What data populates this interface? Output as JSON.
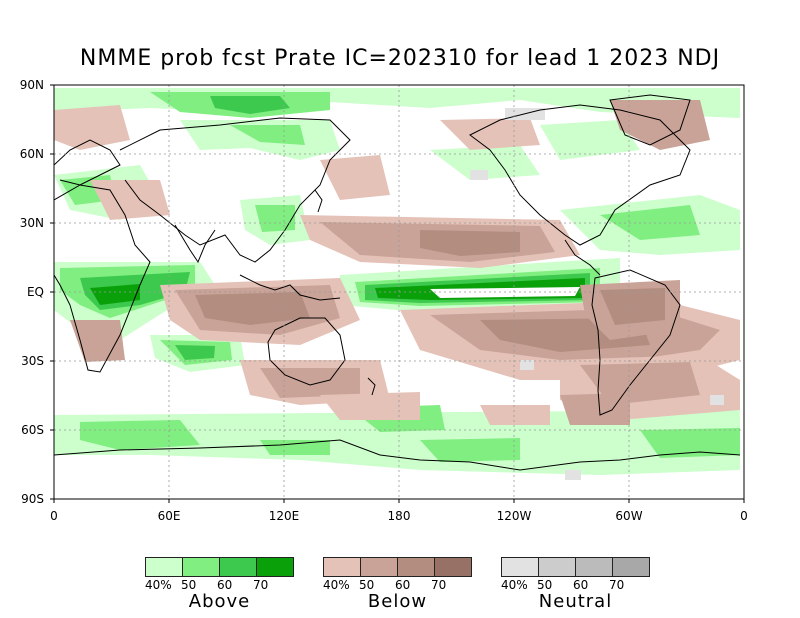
{
  "title": "NMME prob fcst Prate IC=202310 for lead 1 2023 NDJ",
  "lat_labels": [
    "90N",
    "60N",
    "30N",
    "EQ",
    "30S",
    "60S",
    "90S"
  ],
  "lon_labels": [
    "0",
    "60E",
    "120E",
    "180",
    "120W",
    "60W",
    "0"
  ],
  "legend": [
    {
      "name": "Above",
      "ticks": [
        "40%",
        "50",
        "60",
        "70"
      ],
      "colors": [
        "#ccffcc",
        "#80ee80",
        "#3dc94d",
        "#0aa00a"
      ]
    },
    {
      "name": "Below",
      "ticks": [
        "40%",
        "50",
        "60",
        "70"
      ],
      "colors": [
        "#e5c2b8",
        "#c9a397",
        "#b28d80",
        "#987166"
      ]
    },
    {
      "name": "Neutral",
      "ticks": [
        "40%",
        "50",
        "60",
        "70"
      ],
      "colors": [
        "#e2e2e2",
        "#cccccc",
        "#bbbbbb",
        "#a8a8a8"
      ]
    }
  ]
}
